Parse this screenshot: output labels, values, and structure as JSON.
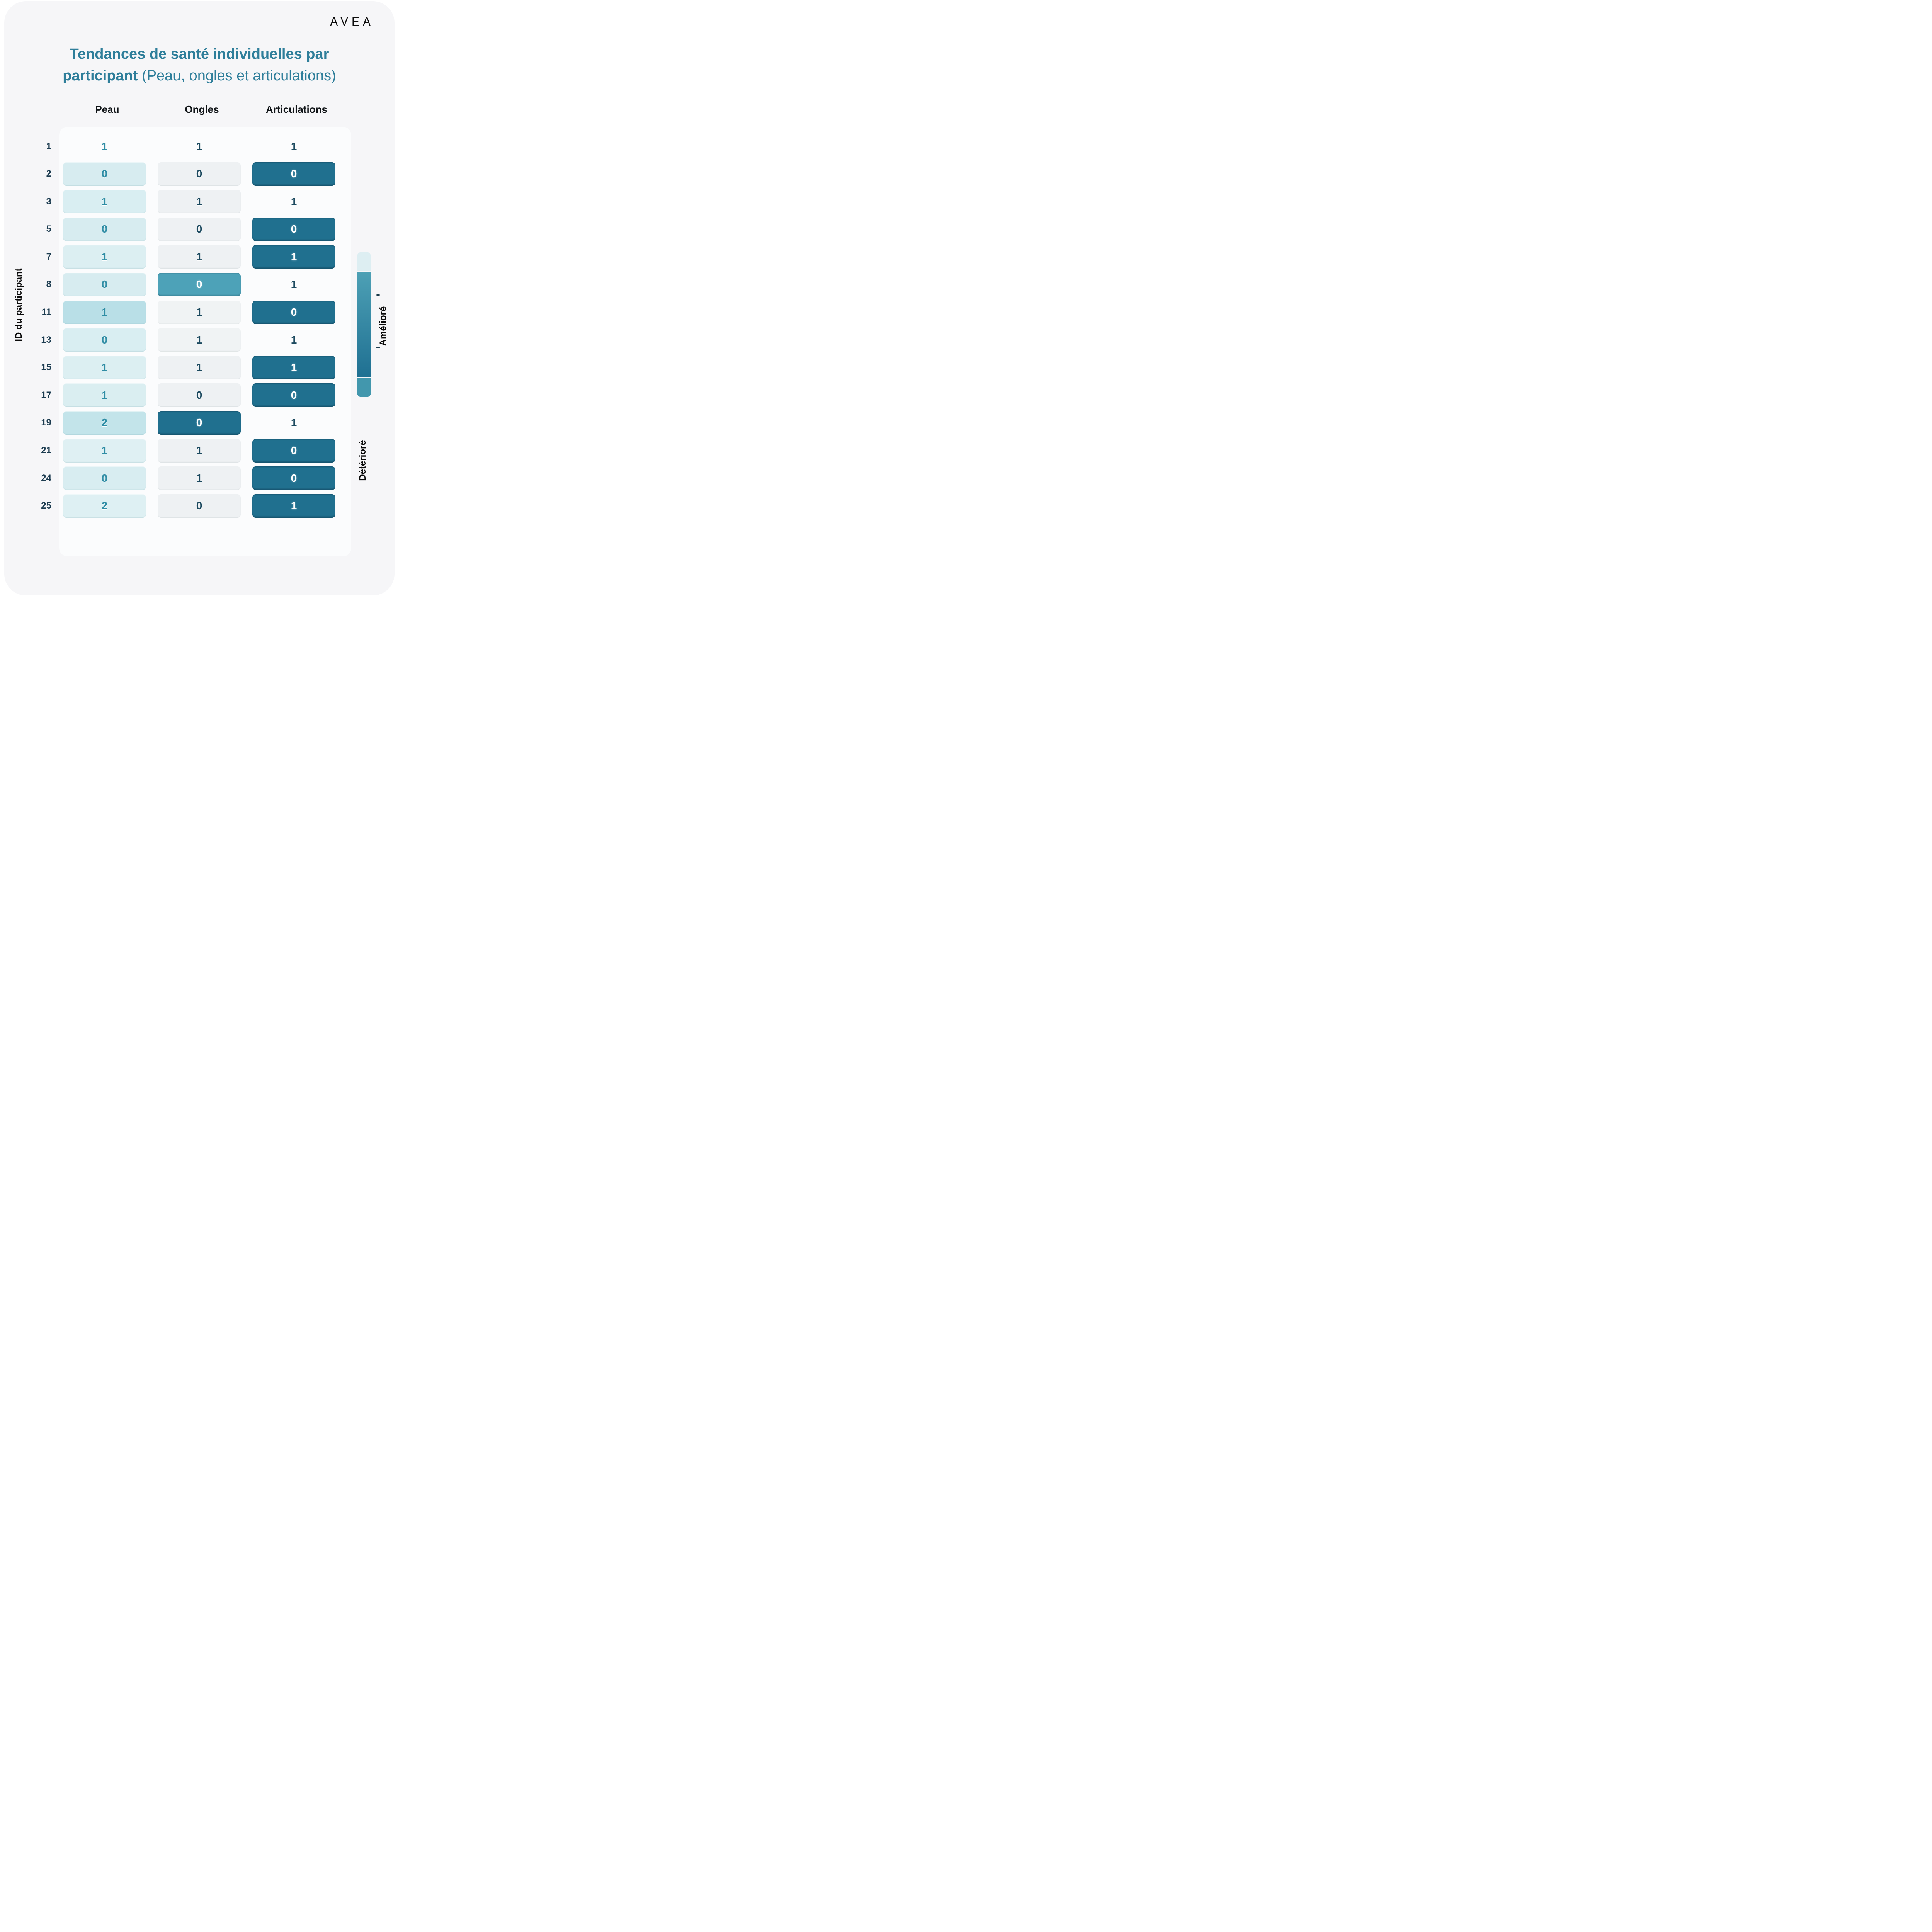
{
  "brand": {
    "logo_text": "AVEA"
  },
  "title": {
    "line1": "Tendances de santé individuelles par",
    "line2_bold": "participant",
    "line2_rest": " (Peau, ongles et articulations)"
  },
  "columns": [
    "Peau",
    "Ongles",
    "Articulations"
  ],
  "ylabel": "ID du participant",
  "legend": {
    "top_label": "Amélioré",
    "bottom_label": "Détérioré",
    "cap_top_color": "#ddeef2",
    "gradient_top_color": "#4da0b5",
    "gradient_bottom_color": "#1f7092",
    "cap_bottom_color": "#4297ad"
  },
  "colors": {
    "page_bg": "#ffffff",
    "card_bg": "#f6f6f8",
    "panel_bg": "#fbfcfd",
    "title_teal": "#2e7e9a",
    "dark_cell": "#20708f",
    "mid_cell": "#4da2b8",
    "light_cyan_cell": "#d8edf1",
    "light_gray_cell": "#eef1f3",
    "teal_text": "#2f8da5",
    "navy_text": "#1c4a5f",
    "row_label_text": "#1c3c50"
  },
  "rows": [
    {
      "id": "1",
      "cells": [
        {
          "v": "1",
          "bg": "none",
          "fg": "#2f8da5",
          "cls": "plain"
        },
        {
          "v": "1",
          "bg": "none",
          "fg": "#1c4a5f",
          "cls": "plain"
        },
        {
          "v": "1",
          "bg": "none",
          "fg": "#1c4a5f",
          "cls": "plain"
        }
      ]
    },
    {
      "id": "2",
      "cells": [
        {
          "v": "0",
          "bg": "#d7ecf0",
          "fg": "#2f8da5",
          "cls": "cyan"
        },
        {
          "v": "0",
          "bg": "#eef1f3",
          "fg": "#1c4a5f",
          "cls": "gray"
        },
        {
          "v": "0",
          "bg": "#20708f",
          "fg": "#ffffff",
          "cls": "dark"
        }
      ]
    },
    {
      "id": "3",
      "cells": [
        {
          "v": "1",
          "bg": "#d9eef2",
          "fg": "#2f8da5",
          "cls": "cyan"
        },
        {
          "v": "1",
          "bg": "#eef1f3",
          "fg": "#1c4a5f",
          "cls": "gray"
        },
        {
          "v": "1",
          "bg": "none",
          "fg": "#1c4a5f",
          "cls": "plain"
        }
      ]
    },
    {
      "id": "5",
      "cells": [
        {
          "v": "0",
          "bg": "#d7ecf0",
          "fg": "#2f8da5",
          "cls": "cyan"
        },
        {
          "v": "0",
          "bg": "#eef1f3",
          "fg": "#1c4a5f",
          "cls": "gray"
        },
        {
          "v": "0",
          "bg": "#20708f",
          "fg": "#ffffff",
          "cls": "dark"
        }
      ]
    },
    {
      "id": "7",
      "cells": [
        {
          "v": "1",
          "bg": "#dceff2",
          "fg": "#2f8da5",
          "cls": "cyan"
        },
        {
          "v": "1",
          "bg": "#eef1f3",
          "fg": "#1c4a5f",
          "cls": "gray"
        },
        {
          "v": "1",
          "bg": "#20708f",
          "fg": "#ffffff",
          "cls": "dark"
        }
      ]
    },
    {
      "id": "8",
      "cells": [
        {
          "v": "0",
          "bg": "#d7ecf0",
          "fg": "#2f8da5",
          "cls": "cyan"
        },
        {
          "v": "0",
          "bg": "#4da2b8",
          "fg": "#ffffff",
          "cls": "mid"
        },
        {
          "v": "1",
          "bg": "none",
          "fg": "#1c4a5f",
          "cls": "plain"
        }
      ]
    },
    {
      "id": "11",
      "cells": [
        {
          "v": "1",
          "bg": "#b9dfe7",
          "fg": "#2f8da5",
          "cls": "cyan"
        },
        {
          "v": "1",
          "bg": "#f0f3f4",
          "fg": "#1c4a5f",
          "cls": "gray"
        },
        {
          "v": "0",
          "bg": "#20708f",
          "fg": "#ffffff",
          "cls": "dark"
        }
      ]
    },
    {
      "id": "13",
      "cells": [
        {
          "v": "0",
          "bg": "#d9eef2",
          "fg": "#2f8da5",
          "cls": "cyan"
        },
        {
          "v": "1",
          "bg": "#f0f3f4",
          "fg": "#1c4a5f",
          "cls": "gray"
        },
        {
          "v": "1",
          "bg": "none",
          "fg": "#1c4a5f",
          "cls": "plain"
        }
      ]
    },
    {
      "id": "15",
      "cells": [
        {
          "v": "1",
          "bg": "#dceff2",
          "fg": "#2f8da5",
          "cls": "cyan"
        },
        {
          "v": "1",
          "bg": "#eef1f3",
          "fg": "#1c4a5f",
          "cls": "gray"
        },
        {
          "v": "1",
          "bg": "#20708f",
          "fg": "#ffffff",
          "cls": "dark"
        }
      ]
    },
    {
      "id": "17",
      "cells": [
        {
          "v": "1",
          "bg": "#daeef1",
          "fg": "#2f8da5",
          "cls": "cyan"
        },
        {
          "v": "0",
          "bg": "#eef1f3",
          "fg": "#1c4a5f",
          "cls": "gray"
        },
        {
          "v": "0",
          "bg": "#20708f",
          "fg": "#ffffff",
          "cls": "dark"
        }
      ]
    },
    {
      "id": "19",
      "cells": [
        {
          "v": "2",
          "bg": "#c3e4ea",
          "fg": "#2f8da5",
          "cls": "cyan"
        },
        {
          "v": "0",
          "bg": "#20708f",
          "fg": "#ffffff",
          "cls": "dark"
        },
        {
          "v": "1",
          "bg": "none",
          "fg": "#1c4a5f",
          "cls": "plain"
        }
      ]
    },
    {
      "id": "21",
      "cells": [
        {
          "v": "1",
          "bg": "#dff0f3",
          "fg": "#2f8da5",
          "cls": "cyan"
        },
        {
          "v": "1",
          "bg": "#eef1f3",
          "fg": "#1c4a5f",
          "cls": "gray"
        },
        {
          "v": "0",
          "bg": "#20708f",
          "fg": "#ffffff",
          "cls": "dark"
        }
      ]
    },
    {
      "id": "24",
      "cells": [
        {
          "v": "0",
          "bg": "#d8edf1",
          "fg": "#2f8da5",
          "cls": "cyan"
        },
        {
          "v": "1",
          "bg": "#eef1f3",
          "fg": "#1c4a5f",
          "cls": "gray"
        },
        {
          "v": "0",
          "bg": "#20708f",
          "fg": "#ffffff",
          "cls": "dark"
        }
      ]
    },
    {
      "id": "25",
      "cells": [
        {
          "v": "2",
          "bg": "#def0f3",
          "fg": "#2f8da5",
          "cls": "cyan"
        },
        {
          "v": "0",
          "bg": "#eef1f3",
          "fg": "#1c4a5f",
          "cls": "gray"
        },
        {
          "v": "1",
          "bg": "#20708f",
          "fg": "#ffffff",
          "cls": "dark"
        }
      ]
    }
  ],
  "chart_data": {
    "type": "heatmap",
    "title": "Tendances de santé individuelles par participant (Peau, ongles et articulations)",
    "x_categories": [
      "Peau",
      "Ongles",
      "Articulations"
    ],
    "y_categories": [
      "1",
      "2",
      "3",
      "5",
      "7",
      "8",
      "11",
      "13",
      "15",
      "17",
      "19",
      "21",
      "24",
      "25"
    ],
    "ylabel": "ID du participant",
    "values": [
      [
        1,
        1,
        1
      ],
      [
        0,
        0,
        0
      ],
      [
        1,
        1,
        1
      ],
      [
        0,
        0,
        0
      ],
      [
        1,
        1,
        1
      ],
      [
        0,
        0,
        1
      ],
      [
        1,
        1,
        0
      ],
      [
        0,
        1,
        1
      ],
      [
        1,
        1,
        1
      ],
      [
        1,
        0,
        0
      ],
      [
        2,
        0,
        1
      ],
      [
        1,
        1,
        0
      ],
      [
        0,
        1,
        0
      ],
      [
        2,
        0,
        1
      ]
    ],
    "legend": {
      "position": "right",
      "top_label": "Amélioré",
      "bottom_label": "Détérioré"
    },
    "grid": false
  }
}
